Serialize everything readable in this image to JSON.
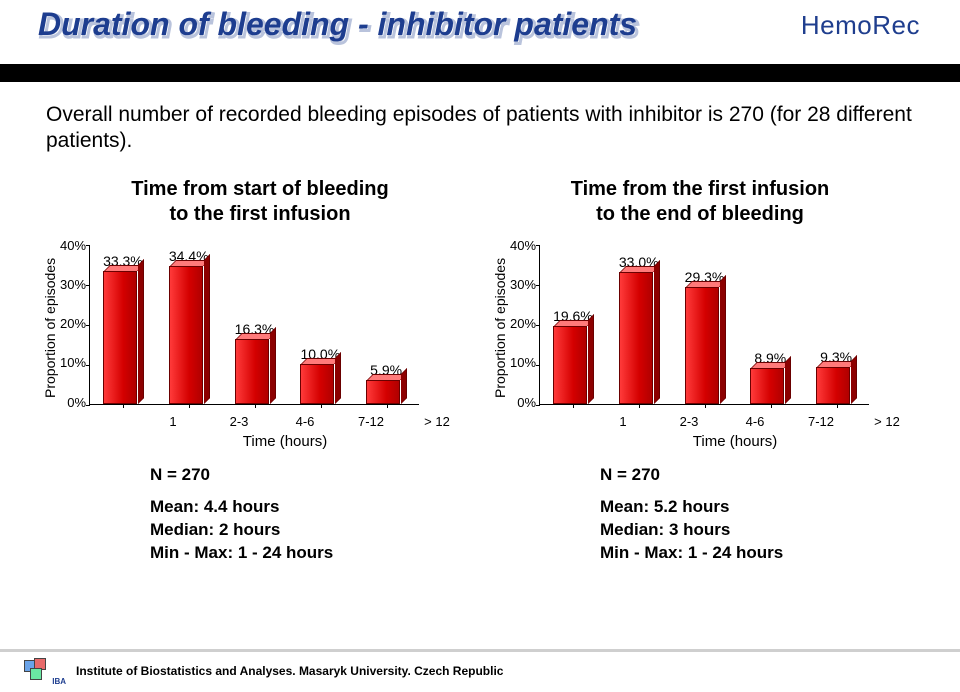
{
  "header": {
    "title": "Duration of bleeding - inhibitor patients",
    "brand": "HemoRec"
  },
  "intro": "Overall number of recorded bleeding episodes of patients with inhibitor is 270 (for 28 different patients).",
  "chart_left": {
    "type": "bar",
    "title_line1": "Time from start of bleeding",
    "title_line2": "to the first infusion",
    "y_label": "Proportion of episodes",
    "ylim_max": 40,
    "ytick_step": 10,
    "yticks": [
      "40%",
      "30%",
      "20%",
      "10%",
      "0%"
    ],
    "x_label": "Time (hours)",
    "categories": [
      "1",
      "2-3",
      "4-6",
      "7-12",
      "> 12"
    ],
    "values": [
      33.3,
      34.4,
      16.3,
      10.0,
      5.9
    ],
    "value_labels": [
      "33.3%",
      "34.4%",
      "16.3%",
      "10.0%",
      "5.9%"
    ],
    "bar_fill": "#d40000",
    "n_label": "N = 270",
    "mean": "Mean: 4.4 hours",
    "median": "Median: 2 hours",
    "minmax": "Min - Max: 1 - 24 hours"
  },
  "chart_right": {
    "type": "bar",
    "title_line1": "Time from the first infusion",
    "title_line2": "to the end of bleeding",
    "y_label": "Proportion of episodes",
    "ylim_max": 40,
    "ytick_step": 10,
    "yticks": [
      "40%",
      "30%",
      "20%",
      "10%",
      "0%"
    ],
    "x_label": "Time (hours)",
    "categories": [
      "1",
      "2-3",
      "4-6",
      "7-12",
      "> 12"
    ],
    "values": [
      19.6,
      33.0,
      29.3,
      8.9,
      9.3
    ],
    "value_labels": [
      "19.6%",
      "33.0%",
      "29.3%",
      "8.9%",
      "9.3%"
    ],
    "bar_fill": "#d40000",
    "n_label": "N = 270",
    "mean": "Mean: 5.2 hours",
    "median": "Median: 3 hours",
    "minmax": "Min - Max: 1 - 24 hours"
  },
  "footer": {
    "logo_txt": "IBA",
    "text": "Institute of Biostatistics and Analyses. Masaryk University. Czech Republic"
  }
}
